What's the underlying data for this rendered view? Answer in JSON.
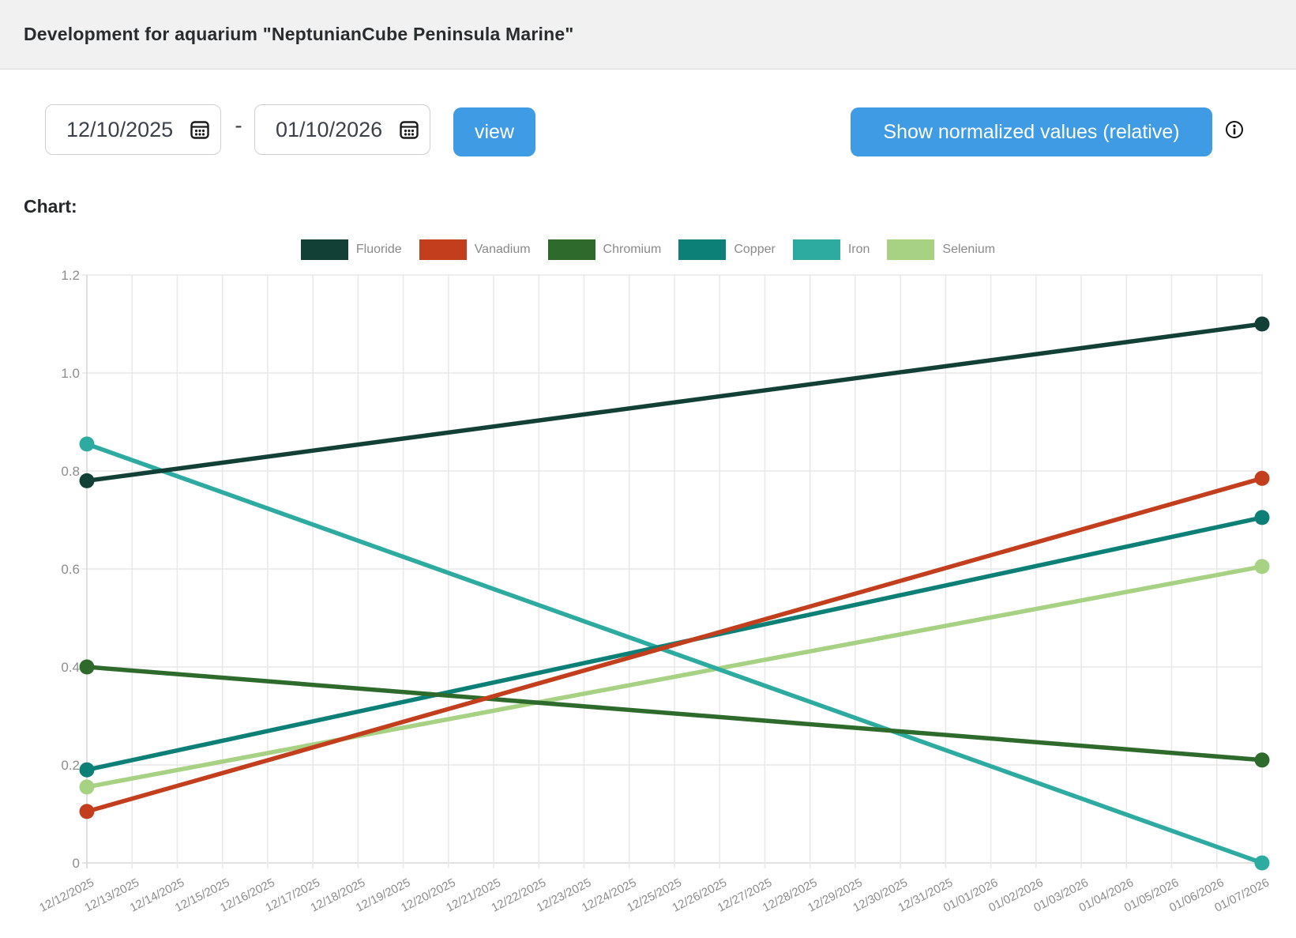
{
  "header": {
    "title": "Development for aquarium \"NeptunianCube Peninsula Marine\""
  },
  "controls": {
    "date_from": "12/10/2025",
    "date_to": "01/10/2026",
    "separator": "-",
    "view_label": "view",
    "normalized_label": "Show normalized values (relative)"
  },
  "icons": {
    "calendar": "calendar-icon",
    "info": "info-circle-icon"
  },
  "colors": {
    "accent_blue": "#3f9be4",
    "header_bg": "#f1f1f1",
    "grid_line": "#e9e9e9",
    "axis_line": "#d9d9d9",
    "tick_text": "#8c8c8c",
    "legend_text": "#8a8a8a"
  },
  "chart_label": "Chart:",
  "chart_data": {
    "type": "line",
    "title": "",
    "xlabel": "",
    "ylabel": "",
    "grid": true,
    "legend_position": "top",
    "ylim": [
      0,
      1.2
    ],
    "y_ticks": [
      0,
      0.2,
      0.4,
      0.6,
      0.8,
      1.0,
      1.2
    ],
    "y_tick_labels": [
      "0",
      "0.2",
      "0.4",
      "0.6",
      "0.8",
      "1.0",
      "1.2"
    ],
    "categories": [
      "12/12/2025",
      "12/13/2025",
      "12/14/2025",
      "12/15/2025",
      "12/16/2025",
      "12/17/2025",
      "12/18/2025",
      "12/19/2025",
      "12/20/2025",
      "12/21/2025",
      "12/22/2025",
      "12/23/2025",
      "12/24/2025",
      "12/25/2025",
      "12/26/2025",
      "12/27/2025",
      "12/28/2025",
      "12/29/2025",
      "12/30/2025",
      "12/31/2025",
      "01/01/2026",
      "01/02/2026",
      "01/03/2026",
      "01/04/2026",
      "01/05/2026",
      "01/06/2026",
      "01/07/2026"
    ],
    "series": [
      {
        "name": "Fluoride",
        "color": "#123f36",
        "x": [
          "12/12/2025",
          "01/07/2026"
        ],
        "values": [
          0.78,
          1.1
        ]
      },
      {
        "name": "Vanadium",
        "color": "#c23e1d",
        "x": [
          "12/12/2025",
          "01/07/2026"
        ],
        "values": [
          0.105,
          0.785
        ]
      },
      {
        "name": "Chromium",
        "color": "#2d6a2c",
        "x": [
          "12/12/2025",
          "01/07/2026"
        ],
        "values": [
          0.4,
          0.21
        ]
      },
      {
        "name": "Copper",
        "color": "#0c8077",
        "x": [
          "12/12/2025",
          "01/07/2026"
        ],
        "values": [
          0.19,
          0.705
        ]
      },
      {
        "name": "Iron",
        "color": "#2eaba0",
        "x": [
          "12/12/2025",
          "01/07/2026"
        ],
        "values": [
          0.855,
          0.0
        ]
      },
      {
        "name": "Selenium",
        "color": "#a7d284",
        "x": [
          "12/12/2025",
          "01/07/2026"
        ],
        "values": [
          0.155,
          0.605
        ]
      }
    ]
  }
}
